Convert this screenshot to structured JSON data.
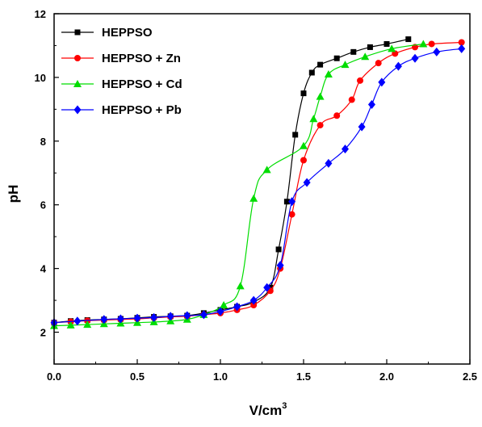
{
  "chart_data": {
    "type": "line",
    "xlabel": "V/cm",
    "xlabel_sup": "3",
    "ylabel": "pH",
    "xlim": [
      0,
      2.5
    ],
    "ylim": [
      1,
      12
    ],
    "xticks": [
      "0.0",
      "0.5",
      "1.0",
      "1.5",
      "2.0",
      "2.5"
    ],
    "xtick_values": [
      0,
      0.5,
      1.0,
      1.5,
      2.0,
      2.5
    ],
    "yticks": [
      "2",
      "4",
      "6",
      "8",
      "10",
      "12"
    ],
    "ytick_values": [
      2,
      4,
      6,
      8,
      10,
      12
    ],
    "grid": false,
    "legend_position": "top-left",
    "series": [
      {
        "name": "HEPPSO",
        "color": "#000000",
        "marker": "square",
        "x": [
          0.0,
          0.1,
          0.2,
          0.3,
          0.4,
          0.5,
          0.6,
          0.7,
          0.8,
          0.9,
          1.0,
          1.1,
          1.2,
          1.3,
          1.35,
          1.4,
          1.45,
          1.5,
          1.55,
          1.6,
          1.7,
          1.8,
          1.9,
          2.0,
          2.13
        ],
        "y": [
          2.3,
          2.35,
          2.38,
          2.4,
          2.42,
          2.45,
          2.48,
          2.5,
          2.52,
          2.6,
          2.7,
          2.8,
          2.95,
          3.4,
          4.6,
          6.1,
          8.2,
          9.5,
          10.15,
          10.4,
          10.6,
          10.8,
          10.95,
          11.05,
          11.2
        ]
      },
      {
        "name": "HEPPSO + Zn",
        "color": "#ff0000",
        "marker": "circle",
        "x": [
          0.0,
          0.1,
          0.2,
          0.3,
          0.4,
          0.5,
          0.6,
          0.7,
          0.8,
          0.9,
          1.0,
          1.1,
          1.2,
          1.3,
          1.36,
          1.43,
          1.5,
          1.6,
          1.7,
          1.79,
          1.84,
          1.95,
          2.05,
          2.17,
          2.27,
          2.45
        ],
        "y": [
          2.3,
          2.33,
          2.36,
          2.38,
          2.4,
          2.42,
          2.45,
          2.48,
          2.5,
          2.55,
          2.6,
          2.7,
          2.85,
          3.3,
          4.0,
          5.7,
          7.4,
          8.5,
          8.8,
          9.3,
          9.9,
          10.45,
          10.75,
          10.95,
          11.05,
          11.1
        ]
      },
      {
        "name": "HEPPSO + Cd",
        "color": "#00dd00",
        "marker": "triangle",
        "x": [
          0.0,
          0.1,
          0.2,
          0.3,
          0.4,
          0.5,
          0.6,
          0.7,
          0.8,
          0.9,
          1.02,
          1.12,
          1.2,
          1.28,
          1.5,
          1.56,
          1.6,
          1.65,
          1.75,
          1.87,
          2.03,
          2.22
        ],
        "y": [
          2.2,
          2.22,
          2.24,
          2.26,
          2.28,
          2.3,
          2.32,
          2.35,
          2.4,
          2.55,
          2.85,
          3.45,
          6.2,
          7.1,
          7.85,
          8.7,
          9.4,
          10.1,
          10.4,
          10.65,
          10.9,
          11.05
        ]
      },
      {
        "name": "HEPPSO + Pb",
        "color": "#0000ff",
        "marker": "diamond",
        "x": [
          0.0,
          0.14,
          0.3,
          0.4,
          0.5,
          0.6,
          0.7,
          0.8,
          0.9,
          1.0,
          1.1,
          1.2,
          1.28,
          1.36,
          1.43,
          1.52,
          1.65,
          1.75,
          1.85,
          1.91,
          1.97,
          2.07,
          2.17,
          2.3,
          2.45
        ],
        "y": [
          2.3,
          2.35,
          2.4,
          2.42,
          2.44,
          2.46,
          2.5,
          2.52,
          2.55,
          2.65,
          2.8,
          3.0,
          3.4,
          4.1,
          6.1,
          6.7,
          7.3,
          7.75,
          8.45,
          9.15,
          9.85,
          10.35,
          10.6,
          10.8,
          10.9
        ]
      }
    ]
  }
}
